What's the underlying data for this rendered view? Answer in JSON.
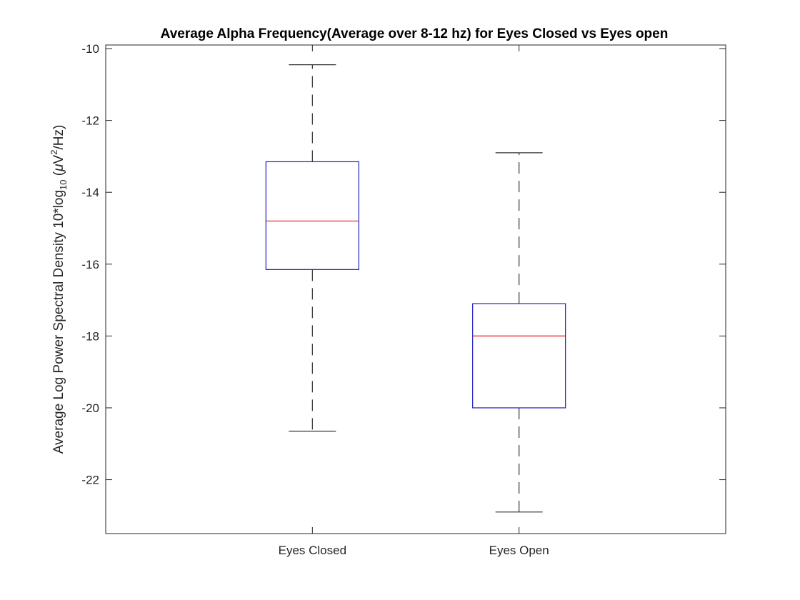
{
  "chart_data": {
    "type": "box",
    "title": "Average Alpha Frequency(Average over 8-12 hz) for Eyes Closed vs Eyes open",
    "ylabel": {
      "prefix": "Average Log Power Spectral Density 10*log",
      "subscript": "10",
      "mid": " (",
      "greek": "μ",
      "unit_base": "V",
      "superscript": "2",
      "suffix": "/Hz)"
    },
    "ylim": [
      -23.5,
      -9.9
    ],
    "yticks": [
      -22,
      -20,
      -18,
      -16,
      -14,
      -12,
      -10
    ],
    "ytick_labels": [
      "-22",
      "-20",
      "-18",
      "-16",
      "-14",
      "-12",
      "-10"
    ],
    "categories": [
      "Eyes Closed",
      "Eyes Open"
    ],
    "boxes": [
      {
        "name": "Eyes Closed",
        "whisker_low": -20.65,
        "q1": -16.15,
        "median": -14.8,
        "q3": -13.15,
        "whisker_high": -10.45
      },
      {
        "name": "Eyes Open",
        "whisker_low": -22.9,
        "q1": -20.0,
        "median": -18.0,
        "q3": -17.1,
        "whisker_high": -12.9
      }
    ],
    "colors": {
      "box": "#1f1fbf",
      "median": "#e8141e",
      "whisker": "#333333",
      "axis": "#262626"
    }
  }
}
